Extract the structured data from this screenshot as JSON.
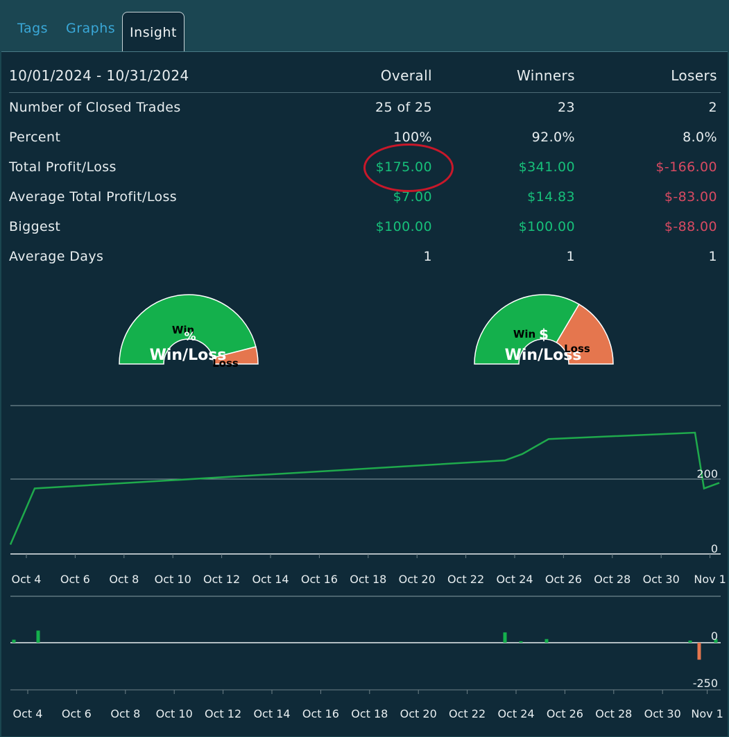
{
  "tabs": [
    {
      "label": "Tags",
      "active": false
    },
    {
      "label": "Graphs",
      "active": false
    },
    {
      "label": "Insight",
      "active": true
    }
  ],
  "stats": {
    "date_range": "10/01/2024 - 10/31/2024",
    "headers": {
      "overall": "Overall",
      "winners": "Winners",
      "losers": "Losers"
    },
    "rows": [
      {
        "label": "Number of Closed Trades",
        "overall": "25 of 25",
        "winners": "23",
        "losers": "2"
      },
      {
        "label": "Percent",
        "overall": "100%",
        "winners": "92.0%",
        "losers": "8.0%"
      },
      {
        "label": "Total Profit/Loss",
        "overall": "$175.00",
        "winners": "$341.00",
        "losers": "$-166.00"
      },
      {
        "label": "Average Total Profit/Loss",
        "overall": "$7.00",
        "winners": "$14.83",
        "losers": "$-83.00"
      },
      {
        "label": "Biggest",
        "overall": "$100.00",
        "winners": "$100.00",
        "losers": "$-88.00"
      },
      {
        "label": "Average Days",
        "overall": "1",
        "winners": "1",
        "losers": "1"
      }
    ]
  },
  "gauges": [
    {
      "title": "Win/Loss",
      "symbol": "%",
      "win_label": "Win",
      "loss_label": "Loss",
      "win_fraction": 0.92
    },
    {
      "title": "Win/Loss",
      "symbol": "$",
      "win_label": "Win",
      "loss_label": "Loss",
      "win_fraction": 0.67
    }
  ],
  "colors": {
    "win": "#14b04c",
    "loss": "#e5764e",
    "line": "#1faa4c",
    "highlight": "#c8182a"
  },
  "chart_data": [
    {
      "type": "line",
      "title": "",
      "x": [
        "Oct 1",
        "Oct 4",
        "Oct 24",
        "Oct 25",
        "Oct 26",
        "Oct 31",
        "Nov 1",
        "Nov 2"
      ],
      "values": [
        25,
        175,
        250,
        267,
        307,
        324,
        175,
        190
      ],
      "x_ticks": [
        "Oct 4",
        "Oct 6",
        "Oct 8",
        "Oct 10",
        "Oct 12",
        "Oct 14",
        "Oct 16",
        "Oct 18",
        "Oct 20",
        "Oct 22",
        "Oct 24",
        "Oct 26",
        "Oct 28",
        "Oct 30",
        "Nov 1"
      ],
      "y_ticks": [
        "0",
        "200"
      ],
      "ylim": [
        0,
        400
      ]
    },
    {
      "type": "bar",
      "title": "",
      "x": [
        "Oct 3",
        "Oct 4",
        "Oct 24",
        "Oct 25",
        "Oct 26",
        "Nov 1",
        "Nov 1b",
        "Nov 2"
      ],
      "values": [
        25,
        100,
        85,
        12,
        30,
        18,
        -140,
        30
      ],
      "x_ticks": [
        "Oct 4",
        "Oct 6",
        "Oct 8",
        "Oct 10",
        "Oct 12",
        "Oct 14",
        "Oct 16",
        "Oct 18",
        "Oct 20",
        "Oct 22",
        "Oct 24",
        "Oct 26",
        "Oct 28",
        "Oct 30",
        "Nov 1"
      ],
      "y_ticks": [
        "0",
        "-250"
      ],
      "ylim": [
        -250,
        100
      ]
    }
  ]
}
